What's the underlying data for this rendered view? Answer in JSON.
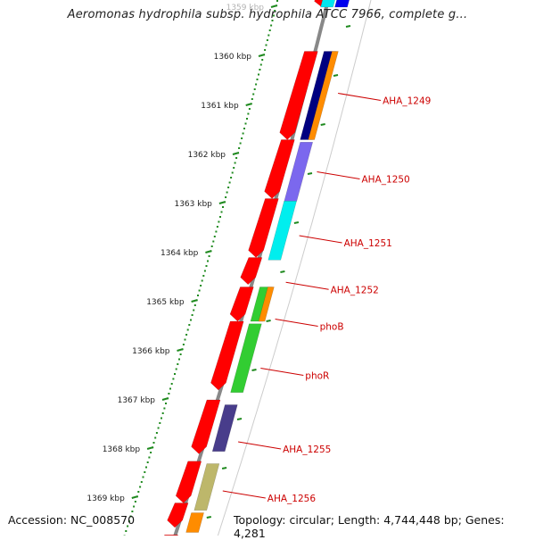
{
  "title": "Aeromonas hydrophila subsp. hydrophila ATCC 7966, complete g...",
  "footer": {
    "accession": "Accession: NC_008570",
    "topology": "Topology: circular; Length: 4,744,448 bp; Genes: 4,281"
  },
  "colors": {
    "backbone": "#888888",
    "tick": "#1f8a1f",
    "dot": "#1f8a1f",
    "label": "#cc0000",
    "cds_forward": "#ff0000"
  },
  "ticks": [
    {
      "label": "1359 kbp",
      "kb": 1359
    },
    {
      "label": "1360 kbp",
      "kb": 1360
    },
    {
      "label": "1361 kbp",
      "kb": 1361
    },
    {
      "label": "1362 kbp",
      "kb": 1362
    },
    {
      "label": "1363 kbp",
      "kb": 1363
    },
    {
      "label": "1364 kbp",
      "kb": 1364
    },
    {
      "label": "1365 kbp",
      "kb": 1365
    },
    {
      "label": "1366 kbp",
      "kb": 1366
    },
    {
      "label": "1367 kbp",
      "kb": 1367
    },
    {
      "label": "1368 kbp",
      "kb": 1368
    },
    {
      "label": "1369 kbp",
      "kb": 1369
    }
  ],
  "cds_forward": [
    {
      "start": 1358.6,
      "end": 1359.0
    },
    {
      "start": 1359.9,
      "end": 1361.7
    },
    {
      "start": 1361.7,
      "end": 1362.9
    },
    {
      "start": 1362.9,
      "end": 1364.1
    },
    {
      "start": 1364.1,
      "end": 1364.65
    },
    {
      "start": 1364.7,
      "end": 1365.4
    },
    {
      "start": 1365.4,
      "end": 1366.8
    },
    {
      "start": 1367.0,
      "end": 1368.1
    },
    {
      "start": 1368.25,
      "end": 1369.1
    },
    {
      "start": 1369.1,
      "end": 1369.6
    },
    {
      "start": 1369.75,
      "end": 1370.2
    }
  ],
  "genes": [
    {
      "label": "",
      "start": 1358.6,
      "end": 1359.0,
      "color": "#00e5ee",
      "lane": 1
    },
    {
      "label": "",
      "start": 1358.6,
      "end": 1359.0,
      "color": "#0000ee",
      "lane": 2
    },
    {
      "label": "AHA_1249",
      "start": 1359.9,
      "end": 1361.7,
      "color": "#000080",
      "lane": 2
    },
    {
      "label": "",
      "start": 1359.9,
      "end": 1361.7,
      "color": "#ff8c00",
      "lane": 3
    },
    {
      "label": "AHA_1250",
      "start": 1361.75,
      "end": 1362.95,
      "color": "#7b68ee",
      "lane": 2
    },
    {
      "label": "AHA_1251",
      "start": 1362.95,
      "end": 1364.15,
      "color": "#00eeee",
      "lane": 2
    },
    {
      "label": "AHA_1252",
      "start": 1364.1,
      "end": 1364.65,
      "color": "",
      "lane": 2
    },
    {
      "label": "phoB",
      "start": 1364.7,
      "end": 1365.4,
      "color": "#32cd32",
      "lane": 2
    },
    {
      "label": "",
      "start": 1364.7,
      "end": 1365.4,
      "color": "#ff8c00",
      "lane": 3
    },
    {
      "label": "phoR",
      "start": 1365.45,
      "end": 1366.85,
      "color": "#32cd32",
      "lane": 2
    },
    {
      "label": "AHA_1255",
      "start": 1367.1,
      "end": 1368.05,
      "color": "#483d8b",
      "lane": 2
    },
    {
      "label": "AHA_1256",
      "start": 1368.3,
      "end": 1369.25,
      "color": "#bdb76b",
      "lane": 2
    },
    {
      "label": "",
      "start": 1369.3,
      "end": 1369.7,
      "color": "#ff8c00",
      "lane": 2
    }
  ],
  "label_positions": {
    "AHA_1249": 1360.9,
    "AHA_1250": 1362.5,
    "AHA_1251": 1363.8,
    "AHA_1252": 1364.75,
    "phoB": 1365.5,
    "phoR": 1366.5,
    "AHA_1255": 1368.0,
    "AHA_1256": 1369.0
  }
}
